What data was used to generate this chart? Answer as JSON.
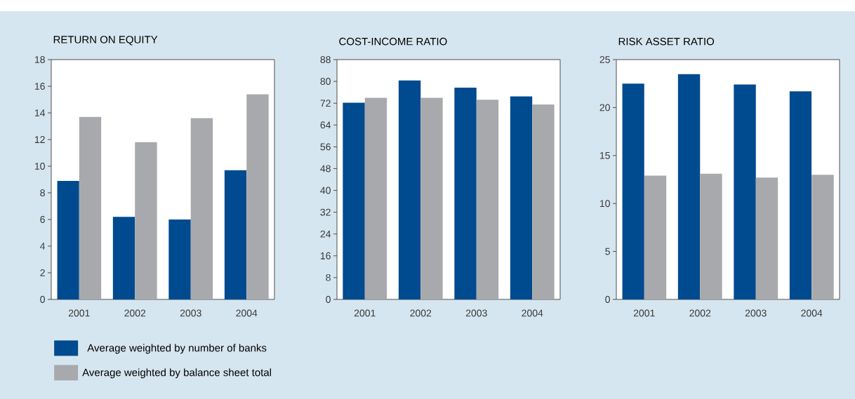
{
  "chart_data": [
    {
      "type": "bar",
      "title": "RETURN ON EQUITY",
      "categories": [
        "2001",
        "2002",
        "2003",
        "2004"
      ],
      "ylim": [
        0,
        18
      ],
      "yticks": [
        0,
        2,
        4,
        6,
        8,
        10,
        12,
        14,
        16,
        18
      ],
      "legend": "bottom",
      "series": [
        {
          "name": "Average weighted by number of banks",
          "color": "#004a8f",
          "values": [
            8.9,
            6.2,
            6.0,
            9.7
          ]
        },
        {
          "name": "Average weighted by balance sheet total",
          "color": "#a8a9ad",
          "values": [
            13.7,
            11.8,
            13.6,
            15.4
          ]
        }
      ]
    },
    {
      "type": "bar",
      "title": "COST-INCOME RATIO",
      "categories": [
        "2001",
        "2002",
        "2003",
        "2004"
      ],
      "ylim": [
        0,
        88
      ],
      "yticks": [
        0,
        8,
        16,
        24,
        32,
        40,
        48,
        56,
        64,
        72,
        80,
        88
      ],
      "series": [
        {
          "color": "#004a8f",
          "values": [
            72.2,
            80.4,
            77.7,
            74.5
          ]
        },
        {
          "color": "#a8a9ad",
          "values": [
            74.0,
            74.0,
            73.3,
            71.5
          ]
        }
      ]
    },
    {
      "type": "bar",
      "title": "RISK ASSET RATIO",
      "categories": [
        "2001",
        "2002",
        "2003",
        "2004"
      ],
      "ylim": [
        0,
        25
      ],
      "yticks": [
        0,
        5,
        10,
        15,
        20,
        25
      ],
      "series": [
        {
          "color": "#004a8f",
          "values": [
            22.5,
            23.5,
            22.4,
            21.7
          ]
        },
        {
          "color": "#a8a9ad",
          "values": [
            12.9,
            13.1,
            12.7,
            13.0
          ]
        }
      ]
    }
  ]
}
